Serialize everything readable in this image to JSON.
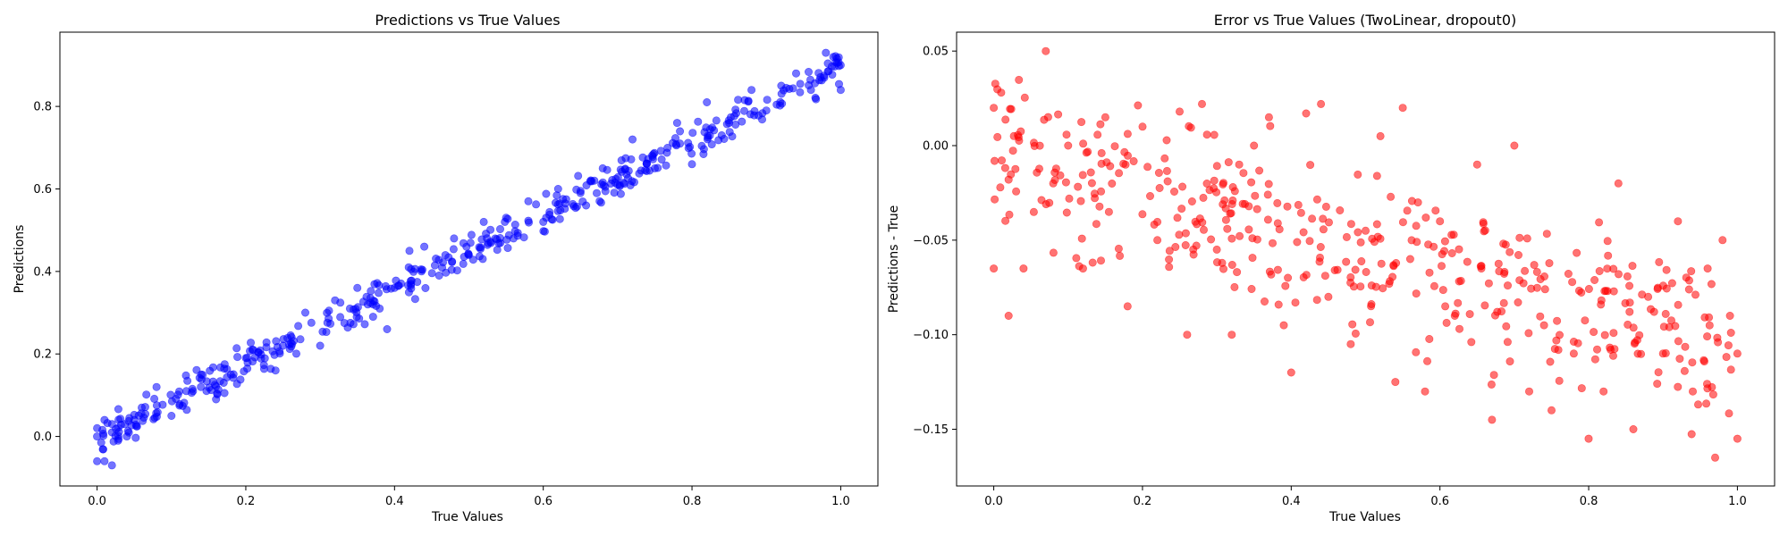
{
  "chart_data": [
    {
      "type": "scatter",
      "title": "Predictions vs True Values",
      "xlabel": "True Values",
      "ylabel": "Predictions",
      "xlim": [
        -0.05,
        1.05
      ],
      "ylim": [
        -0.12,
        0.98
      ],
      "xticks": [
        0.0,
        0.2,
        0.4,
        0.6,
        0.8,
        1.0
      ],
      "xtick_labels": [
        "0.0",
        "0.2",
        "0.4",
        "0.6",
        "0.8",
        "1.0"
      ],
      "yticks": [
        0.0,
        0.2,
        0.4,
        0.6,
        0.8
      ],
      "ytick_labels": [
        "0.0",
        "0.2",
        "0.4",
        "0.6",
        "0.8"
      ],
      "grid": false,
      "color": "#0000ff",
      "alpha": 0.55,
      "trend": {
        "slope": 0.9,
        "intercept": -0.005,
        "noise": 0.03
      },
      "series": [
        {
          "points": [
            [
              0.0,
              -0.06
            ],
            [
              0.0,
              0.0
            ],
            [
              0.0,
              0.02
            ],
            [
              0.01,
              -0.06
            ],
            [
              0.01,
              0.04
            ],
            [
              0.02,
              -0.07
            ],
            [
              0.02,
              0.01
            ],
            [
              0.02,
              0.03
            ],
            [
              0.04,
              0.0
            ],
            [
              0.05,
              0.04
            ],
            [
              0.06,
              0.07
            ],
            [
              0.08,
              0.12
            ],
            [
              0.1,
              0.05
            ],
            [
              0.12,
              0.11
            ],
            [
              0.14,
              0.15
            ],
            [
              0.16,
              0.09
            ],
            [
              0.18,
              0.15
            ],
            [
              0.2,
              0.19
            ],
            [
              0.21,
              0.21
            ],
            [
              0.24,
              0.16
            ],
            [
              0.25,
              0.22
            ],
            [
              0.28,
              0.3
            ],
            [
              0.3,
              0.22
            ],
            [
              0.32,
              0.33
            ],
            [
              0.34,
              0.31
            ],
            [
              0.35,
              0.36
            ],
            [
              0.38,
              0.31
            ],
            [
              0.39,
              0.26
            ],
            [
              0.4,
              0.36
            ],
            [
              0.42,
              0.45
            ],
            [
              0.44,
              0.46
            ],
            [
              0.46,
              0.39
            ],
            [
              0.48,
              0.48
            ],
            [
              0.5,
              0.44
            ],
            [
              0.52,
              0.52
            ],
            [
              0.55,
              0.53
            ],
            [
              0.56,
              0.48
            ],
            [
              0.58,
              0.57
            ],
            [
              0.6,
              0.52
            ],
            [
              0.62,
              0.6
            ],
            [
              0.65,
              0.59
            ],
            [
              0.68,
              0.65
            ],
            [
              0.7,
              0.61
            ],
            [
              0.72,
              0.72
            ],
            [
              0.75,
              0.65
            ],
            [
              0.78,
              0.76
            ],
            [
              0.8,
              0.66
            ],
            [
              0.82,
              0.81
            ],
            [
              0.84,
              0.73
            ],
            [
              0.85,
              0.76
            ],
            [
              0.88,
              0.84
            ],
            [
              0.9,
              0.79
            ],
            [
              0.92,
              0.85
            ],
            [
              0.94,
              0.88
            ],
            [
              0.96,
              0.84
            ],
            [
              0.98,
              0.93
            ],
            [
              0.99,
              0.92
            ],
            [
              1.0,
              0.84
            ],
            [
              1.0,
              0.9
            ]
          ]
        }
      ]
    },
    {
      "type": "scatter",
      "title": "Error vs True Values (TwoLinear, dropout0)",
      "xlabel": "True Values",
      "ylabel": "Predictions - True",
      "xlim": [
        -0.05,
        1.05
      ],
      "ylim": [
        -0.18,
        0.06
      ],
      "xticks": [
        0.0,
        0.2,
        0.4,
        0.6,
        0.8,
        1.0
      ],
      "xtick_labels": [
        "0.0",
        "0.2",
        "0.4",
        "0.6",
        "0.8",
        "1.0"
      ],
      "yticks": [
        -0.15,
        -0.1,
        -0.05,
        0.0,
        0.05
      ],
      "ytick_labels": [
        "−0.15",
        "−0.10",
        "−0.05",
        "0.00",
        "0.05"
      ],
      "grid": false,
      "color": "#ff0000",
      "alpha": 0.55,
      "trend": {
        "slope": -0.1,
        "intercept": -0.005,
        "noise": 0.03
      },
      "series": [
        {
          "points": [
            [
              0.0,
              0.02
            ],
            [
              0.0,
              -0.065
            ],
            [
              0.01,
              0.028
            ],
            [
              0.02,
              -0.09
            ],
            [
              0.02,
              -0.018
            ],
            [
              0.04,
              -0.065
            ],
            [
              0.07,
              0.05
            ],
            [
              0.08,
              -0.02
            ],
            [
              0.1,
              0.0
            ],
            [
              0.12,
              -0.065
            ],
            [
              0.15,
              0.015
            ],
            [
              0.18,
              -0.085
            ],
            [
              0.2,
              0.01
            ],
            [
              0.22,
              -0.05
            ],
            [
              0.25,
              0.018
            ],
            [
              0.26,
              -0.1
            ],
            [
              0.28,
              0.022
            ],
            [
              0.3,
              -0.055
            ],
            [
              0.32,
              -0.1
            ],
            [
              0.33,
              -0.01
            ],
            [
              0.35,
              0.0
            ],
            [
              0.37,
              0.015
            ],
            [
              0.39,
              -0.095
            ],
            [
              0.4,
              -0.12
            ],
            [
              0.42,
              0.017
            ],
            [
              0.44,
              0.022
            ],
            [
              0.45,
              -0.08
            ],
            [
              0.48,
              -0.105
            ],
            [
              0.5,
              -0.045
            ],
            [
              0.52,
              0.005
            ],
            [
              0.54,
              -0.125
            ],
            [
              0.55,
              0.02
            ],
            [
              0.56,
              -0.06
            ],
            [
              0.58,
              -0.13
            ],
            [
              0.6,
              -0.04
            ],
            [
              0.62,
              -0.09
            ],
            [
              0.65,
              -0.01
            ],
            [
              0.67,
              -0.145
            ],
            [
              0.7,
              0.0
            ],
            [
              0.72,
              -0.13
            ],
            [
              0.74,
              -0.095
            ],
            [
              0.75,
              -0.14
            ],
            [
              0.78,
              -0.11
            ],
            [
              0.8,
              -0.155
            ],
            [
              0.82,
              -0.13
            ],
            [
              0.84,
              -0.02
            ],
            [
              0.86,
              -0.15
            ],
            [
              0.88,
              -0.08
            ],
            [
              0.9,
              -0.11
            ],
            [
              0.92,
              -0.04
            ],
            [
              0.94,
              -0.13
            ],
            [
              0.96,
              -0.065
            ],
            [
              0.97,
              -0.165
            ],
            [
              0.98,
              -0.05
            ],
            [
              0.99,
              -0.09
            ],
            [
              1.0,
              -0.155
            ],
            [
              1.0,
              -0.11
            ]
          ]
        }
      ]
    }
  ]
}
